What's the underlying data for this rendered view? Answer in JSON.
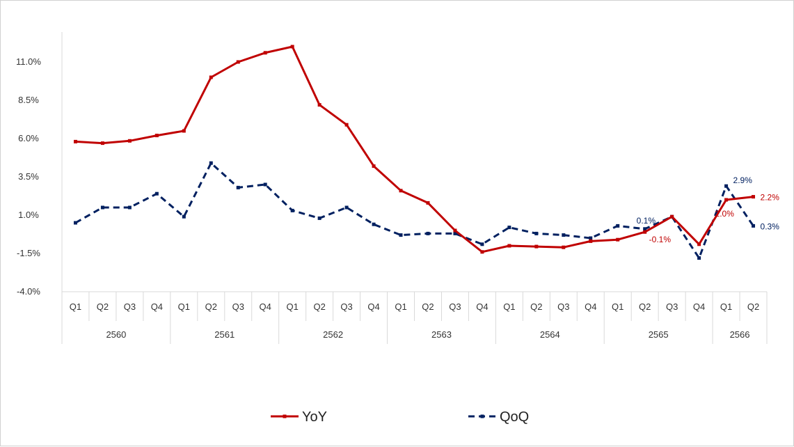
{
  "chart_data": {
    "type": "line",
    "title": "",
    "xlabel": "",
    "ylabel": "",
    "ylim": [
      -4.0,
      13.0
    ],
    "yticks": [
      "11.0%",
      "8.5%",
      "6.0%",
      "3.5%",
      "1.0%",
      "-1.5%",
      "-4.0%"
    ],
    "ytick_values": [
      11.0,
      8.5,
      6.0,
      3.5,
      1.0,
      -1.5,
      -4.0
    ],
    "grid": false,
    "legend_position": "bottom",
    "categories": [
      "Q1",
      "Q2",
      "Q3",
      "Q4",
      "Q1",
      "Q2",
      "Q3",
      "Q4",
      "Q1",
      "Q2",
      "Q3",
      "Q4",
      "Q1",
      "Q2",
      "Q3",
      "Q4",
      "Q1",
      "Q2",
      "Q3",
      "Q4",
      "Q1",
      "Q2",
      "Q3",
      "Q4",
      "Q1",
      "Q2"
    ],
    "years": [
      {
        "label": "2560",
        "count": 4
      },
      {
        "label": "2561",
        "count": 4
      },
      {
        "label": "2562",
        "count": 4
      },
      {
        "label": "2563",
        "count": 4
      },
      {
        "label": "2564",
        "count": 4
      },
      {
        "label": "2565",
        "count": 4
      },
      {
        "label": "2566",
        "count": 2
      }
    ],
    "series": [
      {
        "name": "YoY",
        "color": "#c00000",
        "style": "solid",
        "values": [
          5.8,
          5.7,
          5.85,
          6.2,
          6.5,
          10.0,
          11.0,
          11.6,
          12.0,
          8.2,
          6.9,
          4.2,
          2.6,
          1.8,
          0.0,
          -1.4,
          -1.0,
          -1.05,
          -1.1,
          -0.7,
          -0.6,
          -0.1,
          0.9,
          -0.9,
          2.0,
          2.2
        ],
        "labels": {
          "21": "-0.1%",
          "24": "2.0%",
          "25": "2.2%"
        }
      },
      {
        "name": "QoQ",
        "color": "#002060",
        "style": "dashed",
        "values": [
          0.5,
          1.5,
          1.5,
          2.4,
          0.9,
          4.4,
          2.8,
          3.0,
          1.3,
          0.8,
          1.5,
          0.4,
          -0.3,
          -0.2,
          -0.2,
          -0.9,
          0.2,
          -0.2,
          -0.3,
          -0.5,
          0.3,
          0.1,
          0.9,
          -1.8,
          2.9,
          0.3
        ],
        "labels": {
          "21": "0.1%",
          "24": "2.9%",
          "25": "0.3%"
        }
      }
    ]
  }
}
